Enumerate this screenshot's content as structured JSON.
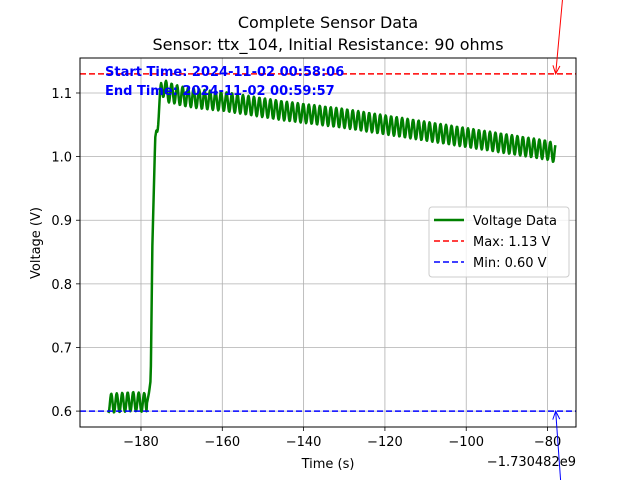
{
  "chart_data": {
    "type": "line",
    "title": "Complete Sensor Data",
    "subtitle": "Sensor: ttx_104, Initial Resistance: 90 ohms",
    "xlabel": "Time (s)",
    "ylabel": "Voltage (V)",
    "x_offset_label": "−1.730482e9",
    "xlim": [
      -195,
      -73
    ],
    "ylim": [
      0.575,
      1.155
    ],
    "grid": true,
    "legend_placement": "center-right",
    "x_ticks": [
      -180,
      -160,
      -140,
      -120,
      -100,
      -80
    ],
    "x_tick_labels": [
      "−180",
      "−160",
      "−140",
      "−120",
      "−100",
      "−80"
    ],
    "y_ticks": [
      0.6,
      0.7,
      0.8,
      0.9,
      1.0,
      1.1
    ],
    "y_tick_labels": [
      "0.6",
      "0.7",
      "0.8",
      "0.9",
      "1.0",
      "1.1"
    ],
    "series": [
      {
        "name": "Voltage Data",
        "color": "#008000",
        "style": "solid",
        "envelope": {
          "x": [
            -188,
            -182,
            -178.5,
            -178,
            -177.6,
            -177.2,
            -176.5,
            -176,
            -175.5,
            -175,
            -174.3,
            -173.5,
            -172.5,
            -170,
            -165,
            -160,
            -155,
            -150,
            -145,
            -140,
            -135,
            -130,
            -125,
            -120,
            -115,
            -110,
            -105,
            -100,
            -95,
            -90,
            -85,
            -80,
            -78
          ],
          "y": [
            0.612,
            0.615,
            0.613,
            0.63,
            0.65,
            0.86,
            1.03,
            1.05,
            1.08,
            1.105,
            1.11,
            1.1,
            1.1,
            1.095,
            1.09,
            1.087,
            1.082,
            1.077,
            1.072,
            1.068,
            1.064,
            1.06,
            1.055,
            1.05,
            1.045,
            1.04,
            1.035,
            1.03,
            1.025,
            1.02,
            1.015,
            1.01,
            1.005
          ]
        },
        "oscillation_amplitude_V": 0.015,
        "oscillation_period_s": 1.35
      },
      {
        "name": "Max: 1.13 V",
        "color": "#ff0000",
        "style": "dashed",
        "value": 1.13
      },
      {
        "name": "Min: 0.60 V",
        "color": "#0000ff",
        "style": "dashed",
        "value": 0.6
      }
    ],
    "annotations": [
      {
        "text": "Start Time: 2024-11-02 00:58:06",
        "color": "#0000ff"
      },
      {
        "text": "End Time: 2024-11-02 00:59:57",
        "color": "#0000ff"
      }
    ],
    "arrows": [
      {
        "color": "#ff0000",
        "target_x": -78,
        "target_y": 1.13
      },
      {
        "color": "#0000ff",
        "target_x": -78,
        "target_y": 0.6
      }
    ]
  }
}
